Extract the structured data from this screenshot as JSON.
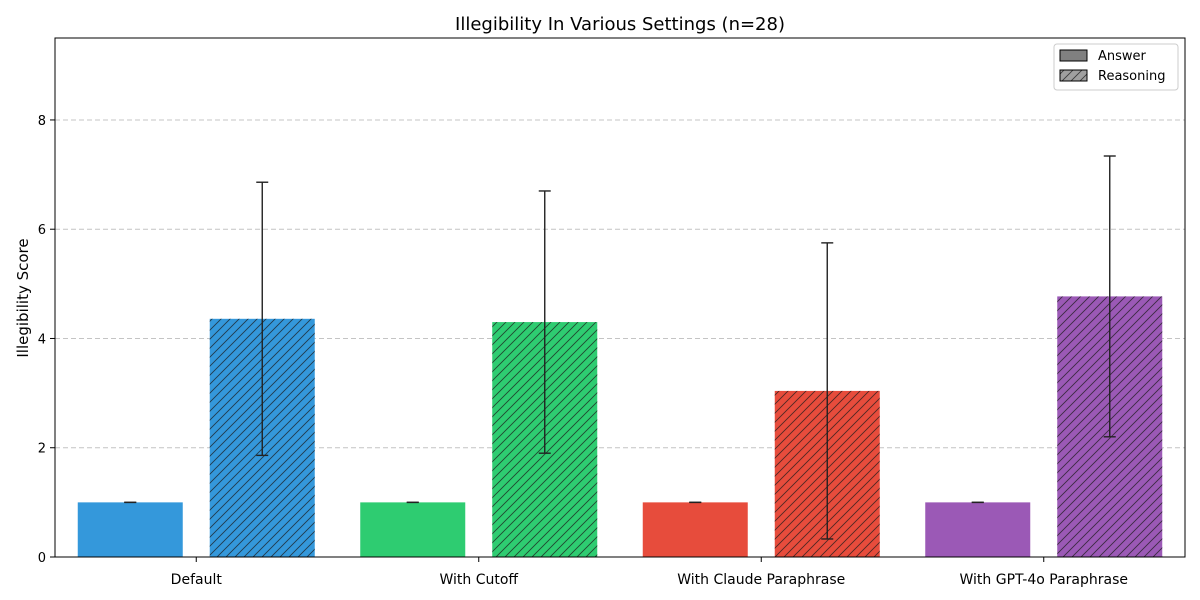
{
  "chart_data": {
    "type": "bar",
    "title": "Illegibility In Various Settings (n=28)",
    "xlabel": "",
    "ylabel": "Illegibility Score",
    "ylim": [
      0,
      9.5
    ],
    "yticks": [
      "0",
      "2",
      "4",
      "6",
      "8"
    ],
    "grid": "horizontal dashed",
    "legend_position": "top-right",
    "legend": [
      {
        "label": "Answer",
        "style": "solid"
      },
      {
        "label": "Reasoning",
        "style": "hatched"
      }
    ],
    "categories": [
      "Default",
      "With Cutoff",
      "With Claude Paraphrase",
      "With GPT-4o Paraphrase"
    ],
    "category_colors": [
      "#3498db",
      "#2ecc71",
      "#e74c3c",
      "#9b59b6"
    ],
    "series": [
      {
        "name": "Answer",
        "values": [
          1.0,
          1.0,
          1.0,
          1.0
        ],
        "errors": [
          0.0,
          0.0,
          0.0,
          0.0
        ]
      },
      {
        "name": "Reasoning",
        "values": [
          4.36,
          4.3,
          3.04,
          4.77
        ],
        "errors": [
          2.5,
          2.4,
          2.71,
          2.57
        ]
      }
    ]
  }
}
